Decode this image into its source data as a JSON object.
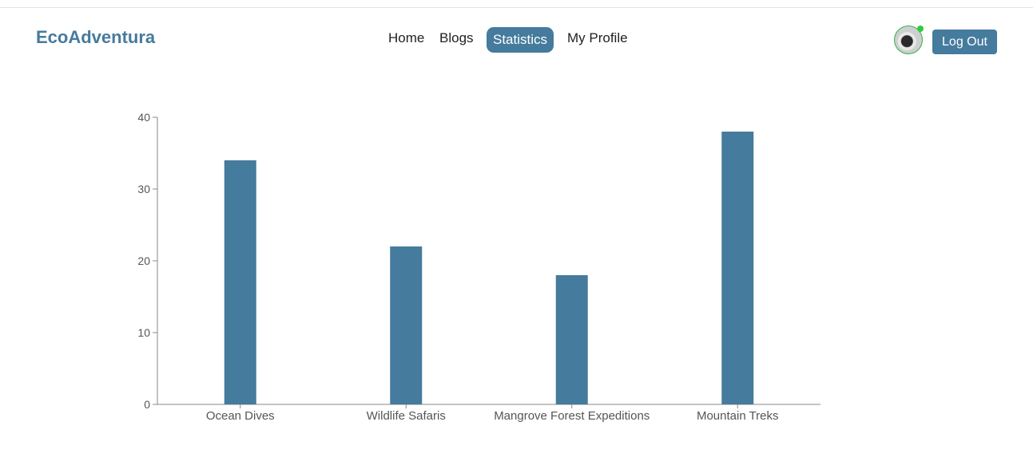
{
  "header": {
    "brand": "EcoAdventura",
    "nav": [
      {
        "label": "Home",
        "active": false
      },
      {
        "label": "Blogs",
        "active": false
      },
      {
        "label": "Statistics",
        "active": true
      },
      {
        "label": "My Profile",
        "active": false
      }
    ],
    "logout_label": "Log Out"
  },
  "colors": {
    "accent": "#457b9d",
    "bar": "#457b9d",
    "online_status": "#2ecc40"
  },
  "icons": {
    "avatar": "user-avatar",
    "status": "online-status-dot"
  },
  "chart_data": {
    "type": "bar",
    "categories": [
      "Ocean Dives",
      "Wildlife Safaris",
      "Mangrove Forest Expeditions",
      "Mountain Treks"
    ],
    "values": [
      34,
      22,
      18,
      38
    ],
    "title": "",
    "xlabel": "",
    "ylabel": "",
    "ylim": [
      0,
      40
    ],
    "yticks": [
      0,
      10,
      20,
      30,
      40
    ],
    "grid": false,
    "legend": "none"
  }
}
